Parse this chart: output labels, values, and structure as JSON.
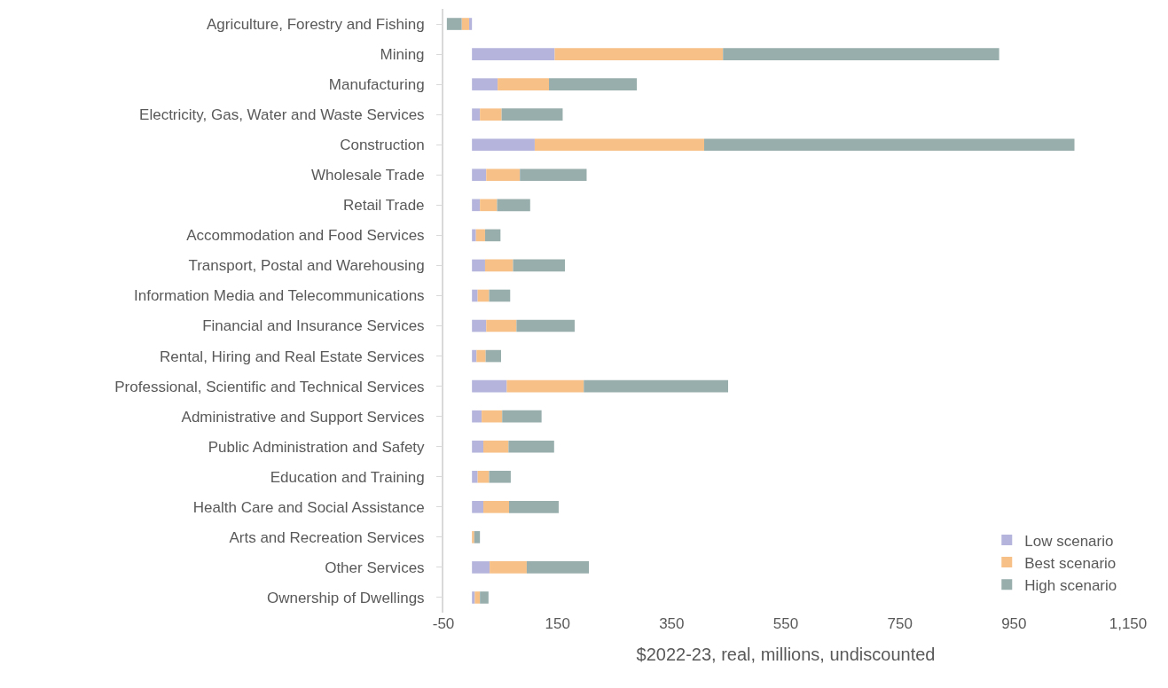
{
  "chart_data": {
    "type": "bar",
    "orientation": "horizontal",
    "stacked": true,
    "xlabel": "$2022-23, real, millions, undiscounted",
    "categories": [
      "Agriculture, Forestry and Fishing",
      "Mining",
      "Manufacturing",
      "Electricity, Gas, Water and Waste Services",
      "Construction",
      "Wholesale Trade",
      "Retail Trade",
      "Accommodation and Food Services",
      "Transport, Postal and Warehousing",
      "Information Media and Telecommunications",
      "Financial and Insurance Services",
      "Rental, Hiring and Real Estate Services",
      "Professional, Scientific and Technical Services",
      "Administrative and Support Services",
      "Public Administration and Safety",
      "Education and Training",
      "Health Care and Social Assistance",
      "Arts and Recreation Services",
      "Other Services",
      "Ownership of Dwellings"
    ],
    "series": [
      {
        "name": "Low scenario",
        "color": "#b4b4dc",
        "values": [
          -5,
          145,
          45,
          14,
          110,
          25,
          14,
          7,
          23,
          10,
          25,
          8,
          61,
          17,
          20,
          10,
          20,
          null,
          31,
          5
        ]
      },
      {
        "name": "Best scenario",
        "color": "#f7c087",
        "values": [
          -13,
          295,
          90,
          38,
          297,
          59,
          30,
          16,
          49,
          20,
          53,
          16,
          135,
          36,
          44,
          20,
          45,
          4,
          65,
          9
        ]
      },
      {
        "name": "High scenario",
        "color": "#98aeac",
        "values": [
          -26,
          484,
          154,
          107,
          649,
          117,
          58,
          27,
          91,
          37,
          102,
          27,
          253,
          69,
          80,
          38,
          87,
          10,
          109,
          15
        ]
      }
    ],
    "xlim": [
      -50,
      1150
    ],
    "xticks": [
      -50,
      {
        "value": 150,
        "label": "150"
      },
      350,
      550,
      750,
      950,
      {
        "value": 1150,
        "label": "1,150"
      }
    ],
    "grid": false,
    "legend": "bottom right"
  }
}
